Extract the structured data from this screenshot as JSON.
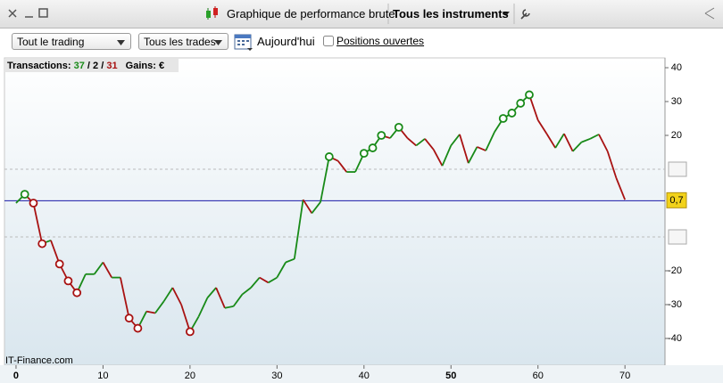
{
  "window": {
    "title": "Graphique de performance brute",
    "instrument": "Tous les instruments"
  },
  "toolbar": {
    "scope": "Tout le trading",
    "trades": "Tous les trades",
    "date": "Aujourd'hui",
    "open_positions": "Positions ouvertes"
  },
  "summary": {
    "label": "Transactions:",
    "wins": 37,
    "even": 2,
    "losses": 31,
    "separator": "/",
    "gains_label": "Gains: €"
  },
  "watermark": "IT-Finance.com",
  "chart_data": {
    "type": "line",
    "x": [
      0,
      1,
      2,
      3,
      4,
      5,
      6,
      7,
      8,
      9,
      10,
      11,
      12,
      13,
      14,
      15,
      16,
      17,
      18,
      19,
      20,
      21,
      22,
      23,
      24,
      25,
      26,
      27,
      28,
      29,
      30,
      31,
      32,
      33,
      34,
      35,
      36,
      37,
      38,
      39,
      40,
      41,
      42,
      43,
      44,
      45,
      46,
      47,
      48,
      49,
      50,
      51,
      52,
      53,
      54,
      55,
      56,
      57,
      58,
      59,
      60,
      61,
      62,
      63,
      64,
      65,
      66,
      67,
      68,
      69,
      70
    ],
    "series": [
      {
        "values": [
          0,
          2.6,
          0,
          -12,
          -11,
          -18,
          -23,
          -26.5,
          -21,
          -21,
          -17.5,
          -22,
          -22,
          -34,
          -37,
          -32,
          -32.5,
          -29,
          -25,
          -30,
          -38,
          -33.5,
          -28,
          -25,
          -31,
          -30.5,
          -27,
          -25,
          -22,
          -23.5,
          -22,
          -17.5,
          -16.5,
          1,
          -3,
          0.3,
          13.7,
          12.5,
          9.2,
          9.2,
          14.7,
          16.3,
          20,
          19.2,
          22.4,
          19.2,
          17,
          19,
          15.8,
          11,
          17,
          20.3,
          11.8,
          16.6,
          15.5,
          21,
          25,
          26.6,
          29.5,
          32,
          24.5,
          20.5,
          16.3,
          20.5,
          15.3,
          18,
          19,
          20.3,
          15.3,
          7.4,
          1
        ]
      }
    ],
    "colors": {
      "up": "#188a18",
      "down": "#a81212"
    },
    "circled_x": [
      1,
      2,
      3,
      5,
      6,
      7,
      13,
      14,
      20,
      36,
      40,
      41,
      42,
      44,
      56,
      57,
      58,
      59
    ],
    "xlim": [
      -1.33,
      74.6
    ],
    "ylim": [
      -47.9,
      42.9
    ],
    "xticks": [
      0,
      10,
      20,
      30,
      40,
      50,
      60,
      70
    ],
    "emphasized_xticks": [
      0,
      50
    ],
    "yticks": [
      40,
      30,
      20,
      -20,
      -30,
      -40
    ],
    "dashed_lines": [
      10,
      -10
    ],
    "reference_line": {
      "value": 0.7,
      "label": "0,7",
      "color": "#1a1aa8"
    }
  }
}
